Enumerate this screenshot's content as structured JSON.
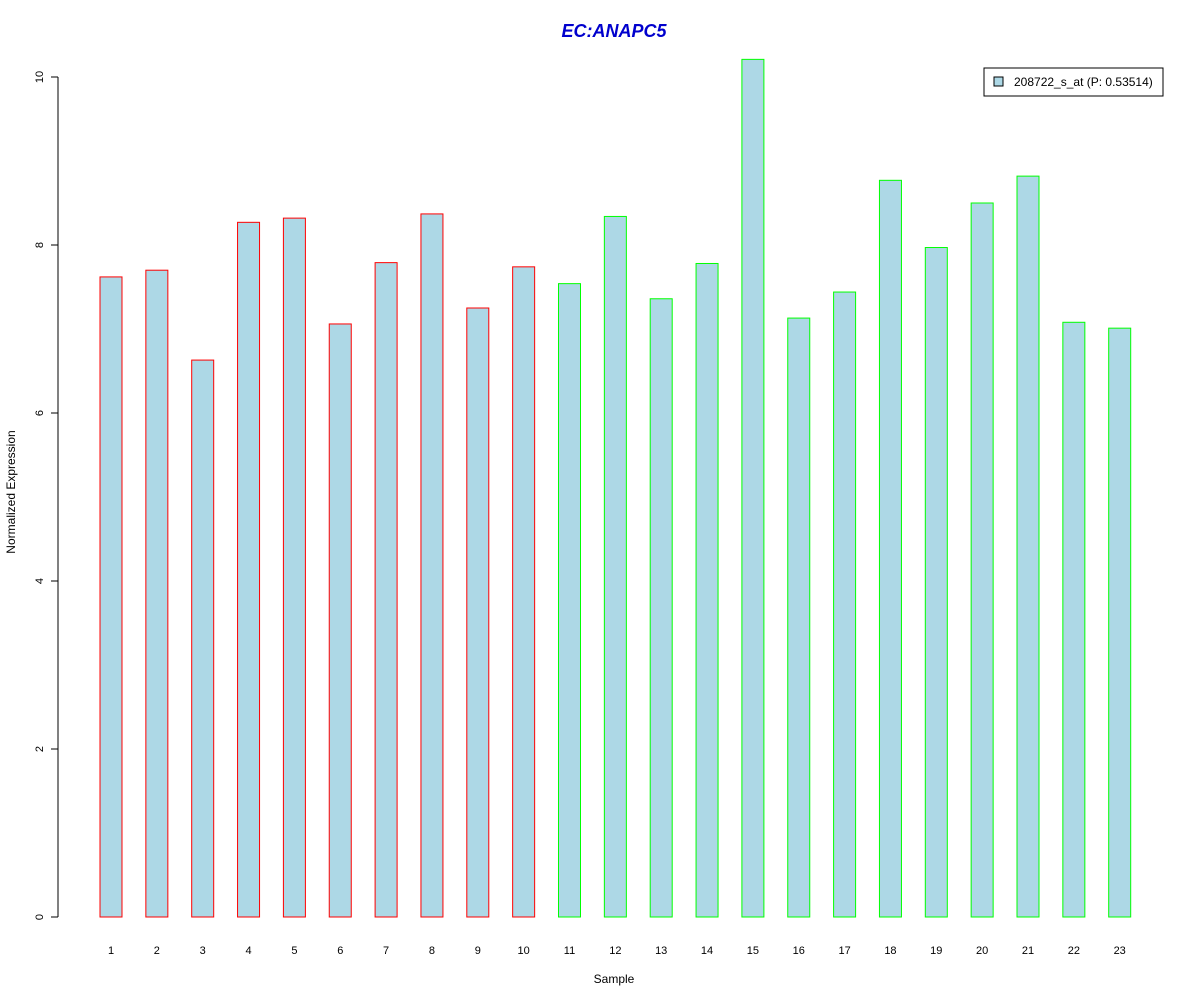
{
  "chart_data": {
    "type": "bar",
    "title": "EC:ANAPC5",
    "xlabel": "Sample",
    "ylabel": "Normalized Expression",
    "categories": [
      "1",
      "2",
      "3",
      "4",
      "5",
      "6",
      "7",
      "8",
      "9",
      "10",
      "11",
      "12",
      "13",
      "14",
      "15",
      "16",
      "17",
      "18",
      "19",
      "20",
      "21",
      "22",
      "23"
    ],
    "series": [
      {
        "name": "208722_s_at (P: 0.53514)",
        "values": [
          7.62,
          7.7,
          6.63,
          8.27,
          8.32,
          7.06,
          7.79,
          8.37,
          7.25,
          7.74,
          7.54,
          8.34,
          7.36,
          7.78,
          10.21,
          7.13,
          7.44,
          8.77,
          7.97,
          8.5,
          8.82,
          7.08,
          7.01
        ]
      }
    ],
    "groups": [
      1,
      1,
      1,
      1,
      1,
      1,
      1,
      1,
      1,
      1,
      2,
      2,
      2,
      2,
      2,
      2,
      2,
      2,
      2,
      2,
      2,
      2,
      2
    ],
    "ylim": [
      0,
      10.5
    ],
    "yticks": [
      0,
      2,
      4,
      6,
      8,
      10
    ],
    "grid": false,
    "legend_position": "top-right",
    "colors": {
      "bar_fill": "#ADD8E6",
      "group1_border": "#FF0000",
      "group2_border": "#00FF00",
      "title": "#0000CD",
      "axis": "#000000"
    }
  }
}
